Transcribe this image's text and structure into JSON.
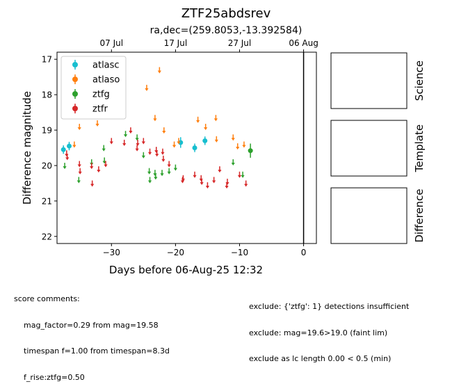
{
  "title": "ZTF25abdsrev",
  "subtitle": "ra,dec=(259.8053,-13.392584)",
  "comments_left": {
    "heading": "score comments:",
    "lines": [
      "mag_factor=0.29 from mag=19.58",
      "timespan f=1.00 from timespan=8.3d",
      "f_rise:ztfg=0.50"
    ]
  },
  "comments_right": {
    "lines": [
      "exclude: {'ztfg': 1} detections insufficient",
      "exclude: mag=19.6>19.0 (faint lim)",
      "exclude as lc length 0.00 < 0.5 (min)"
    ]
  },
  "side_panels": [
    "Science",
    "Template",
    "Difference"
  ],
  "chart_data": {
    "type": "scatter",
    "title": "ZTF25abdsrev",
    "subtitle": "ra,dec=(259.8053,-13.392584)",
    "xlabel": "Days before 06-Aug-25 12:32",
    "ylabel": "Difference magnitude",
    "xlim": [
      -38.5,
      2
    ],
    "ylim": [
      22.2,
      16.8
    ],
    "y_inverted": true,
    "x_ticks": [
      -30,
      -20,
      -10,
      0
    ],
    "x_tick_labels": [
      "−30",
      "−20",
      "−10",
      "0"
    ],
    "y_ticks": [
      17,
      18,
      19,
      20,
      21,
      22
    ],
    "y_tick_labels": [
      "17",
      "18",
      "19",
      "20",
      "21",
      "22"
    ],
    "top_axis_ticks": [
      -30,
      -20,
      -10,
      0
    ],
    "top_axis_labels": [
      "07 Jul",
      "17 Jul",
      "27 Jul",
      "06 Aug"
    ],
    "vline_x": 0,
    "legend_position": "upper left",
    "series": [
      {
        "name": "atlasc",
        "color": "#17becf",
        "upper_limits": [],
        "detections": [
          {
            "x": -37.5,
            "y": 19.55,
            "err": 0.12
          },
          {
            "x": -36.6,
            "y": 19.45,
            "err": 0.12
          },
          {
            "x": -19.2,
            "y": 19.35,
            "err": 0.15
          },
          {
            "x": -17.0,
            "y": 19.5,
            "err": 0.12
          },
          {
            "x": -15.4,
            "y": 19.3,
            "err": 0.12
          }
        ]
      },
      {
        "name": "atlaso",
        "color": "#ff7f0e",
        "detections": [],
        "upper_limits": [
          {
            "x": -35.8,
            "y": 19.4
          },
          {
            "x": -35.0,
            "y": 18.9
          },
          {
            "x": -32.2,
            "y": 18.8
          },
          {
            "x": -24.5,
            "y": 17.8
          },
          {
            "x": -23.2,
            "y": 18.65
          },
          {
            "x": -22.5,
            "y": 17.3
          },
          {
            "x": -21.8,
            "y": 19.0
          },
          {
            "x": -20.2,
            "y": 19.4
          },
          {
            "x": -19.5,
            "y": 19.3
          },
          {
            "x": -16.5,
            "y": 18.7
          },
          {
            "x": -15.3,
            "y": 18.9
          },
          {
            "x": -13.7,
            "y": 18.65
          },
          {
            "x": -13.6,
            "y": 19.25
          },
          {
            "x": -11.0,
            "y": 19.2
          },
          {
            "x": -10.3,
            "y": 19.45
          },
          {
            "x": -9.3,
            "y": 19.4
          }
        ]
      },
      {
        "name": "ztfg",
        "color": "#2ca02c",
        "detections": [
          {
            "x": -8.3,
            "y": 19.58,
            "err": 0.2
          }
        ],
        "upper_limits": [
          {
            "x": -37.3,
            "y": 20.0
          },
          {
            "x": -35.1,
            "y": 20.4
          },
          {
            "x": -33.1,
            "y": 19.9
          },
          {
            "x": -31.2,
            "y": 19.5
          },
          {
            "x": -31.1,
            "y": 19.85
          },
          {
            "x": -27.8,
            "y": 19.1
          },
          {
            "x": -26.0,
            "y": 19.2
          },
          {
            "x": -25.0,
            "y": 19.7
          },
          {
            "x": -24.1,
            "y": 20.15
          },
          {
            "x": -24.0,
            "y": 20.4
          },
          {
            "x": -23.2,
            "y": 20.2
          },
          {
            "x": -23.1,
            "y": 20.3
          },
          {
            "x": -22.1,
            "y": 20.2
          },
          {
            "x": -21.0,
            "y": 20.15
          },
          {
            "x": -20.0,
            "y": 20.05
          },
          {
            "x": -11.0,
            "y": 19.9
          },
          {
            "x": -9.5,
            "y": 20.25
          }
        ]
      },
      {
        "name": "ztfr",
        "color": "#d62728",
        "detections": [],
        "upper_limits": [
          {
            "x": -37.0,
            "y": 19.65
          },
          {
            "x": -36.9,
            "y": 19.75
          },
          {
            "x": -35.0,
            "y": 19.95
          },
          {
            "x": -34.9,
            "y": 20.15
          },
          {
            "x": -33.1,
            "y": 20.0
          },
          {
            "x": -33.0,
            "y": 20.5
          },
          {
            "x": -32.0,
            "y": 20.1
          },
          {
            "x": -30.9,
            "y": 19.95
          },
          {
            "x": -30.0,
            "y": 19.3
          },
          {
            "x": -28.0,
            "y": 19.35
          },
          {
            "x": -27.0,
            "y": 19.0
          },
          {
            "x": -26.0,
            "y": 19.5
          },
          {
            "x": -25.9,
            "y": 19.35
          },
          {
            "x": -25.0,
            "y": 19.3
          },
          {
            "x": -24.0,
            "y": 19.6
          },
          {
            "x": -23.0,
            "y": 19.55
          },
          {
            "x": -22.9,
            "y": 19.65
          },
          {
            "x": -22.0,
            "y": 19.6
          },
          {
            "x": -21.9,
            "y": 19.8
          },
          {
            "x": -21.0,
            "y": 19.95
          },
          {
            "x": -18.9,
            "y": 20.4
          },
          {
            "x": -18.8,
            "y": 20.35
          },
          {
            "x": -17.0,
            "y": 20.25
          },
          {
            "x": -16.0,
            "y": 20.35
          },
          {
            "x": -15.9,
            "y": 20.45
          },
          {
            "x": -15.0,
            "y": 20.55
          },
          {
            "x": -14.0,
            "y": 20.4
          },
          {
            "x": -13.1,
            "y": 20.1
          },
          {
            "x": -12.0,
            "y": 20.55
          },
          {
            "x": -11.9,
            "y": 20.45
          },
          {
            "x": -10.0,
            "y": 20.25
          },
          {
            "x": -9.0,
            "y": 20.5
          }
        ]
      }
    ]
  }
}
